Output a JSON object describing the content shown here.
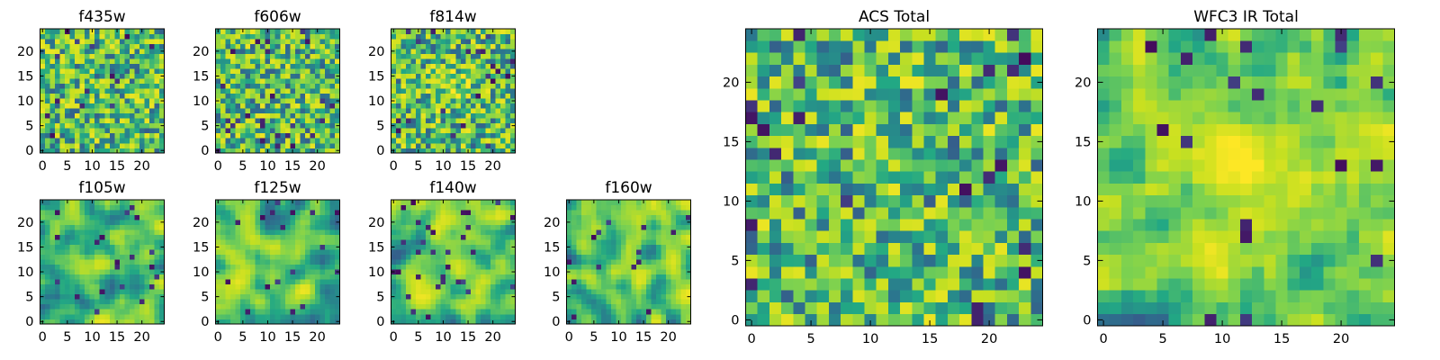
{
  "figure": {
    "colormap": "viridis",
    "colormap_stops": [
      "#440154",
      "#414487",
      "#2a788e",
      "#22a884",
      "#7ad151",
      "#c7e020",
      "#fde725"
    ],
    "background": "#ffffff"
  },
  "chart_data": [
    {
      "type": "heatmap",
      "title": "f435w",
      "grid": false,
      "size": [
        25,
        25
      ],
      "xlim": [
        -0.5,
        24.5
      ],
      "ylim": [
        -0.5,
        24.5
      ],
      "xticks": [
        0,
        5,
        10,
        15,
        20
      ],
      "yticks": [
        0,
        5,
        10,
        15,
        20
      ],
      "values": "pixel grid (25x25), mostly 0.6-0.9 normalized intensity with scattered low (dark) pixels; not individually labeled"
    },
    {
      "type": "heatmap",
      "title": "f606w",
      "grid": false,
      "size": [
        25,
        25
      ],
      "xlim": [
        -0.5,
        24.5
      ],
      "ylim": [
        -0.5,
        24.5
      ],
      "xticks": [
        0,
        5,
        10,
        15,
        20
      ],
      "yticks": [
        0,
        5,
        10,
        15,
        20
      ],
      "values": "pixel grid (25x25), mostly 0.6-0.95 normalized intensity with scattered low pixels"
    },
    {
      "type": "heatmap",
      "title": "f814w",
      "grid": false,
      "size": [
        25,
        25
      ],
      "xlim": [
        -0.5,
        24.5
      ],
      "ylim": [
        -0.5,
        24.5
      ],
      "xticks": [
        0,
        5,
        10,
        15,
        20
      ],
      "yticks": [
        0,
        5,
        10,
        15,
        20
      ],
      "values": "pixel grid (25x25), mostly 0.55-0.9 normalized intensity, slightly brighter near center"
    },
    {
      "type": "heatmap",
      "title": "f105w",
      "grid": false,
      "size": [
        25,
        25
      ],
      "xlim": [
        -0.5,
        24.5
      ],
      "ylim": [
        -0.5,
        24.5
      ],
      "xticks": [
        0,
        5,
        10,
        15,
        20
      ],
      "yticks": [
        0,
        5,
        10,
        15,
        20
      ],
      "values": "pixel grid (25x25), smoothed field with brighter center (~x 10-15, y 10-14)"
    },
    {
      "type": "heatmap",
      "title": "f125w",
      "grid": false,
      "size": [
        25,
        25
      ],
      "xlim": [
        -0.5,
        24.5
      ],
      "ylim": [
        -0.5,
        24.5
      ],
      "xticks": [
        0,
        5,
        10,
        15,
        20
      ],
      "yticks": [
        0,
        5,
        10,
        15,
        20
      ],
      "values": "pixel grid (25x25), smoothed field, bright yellow patches"
    },
    {
      "type": "heatmap",
      "title": "f140w",
      "grid": false,
      "size": [
        25,
        25
      ],
      "xlim": [
        -0.5,
        24.5
      ],
      "ylim": [
        -0.5,
        24.5
      ],
      "xticks": [
        0,
        5,
        10,
        15,
        20
      ],
      "yticks": [
        0,
        5,
        10,
        15,
        20
      ],
      "values": "pixel grid (25x25), smoothed field, bright band around y 15-20"
    },
    {
      "type": "heatmap",
      "title": "f160w",
      "grid": false,
      "size": [
        25,
        25
      ],
      "xlim": [
        -0.5,
        24.5
      ],
      "ylim": [
        -0.5,
        24.5
      ],
      "xticks": [
        0,
        5,
        10,
        15,
        20
      ],
      "yticks": [
        0,
        5,
        10,
        15,
        20
      ],
      "values": "pixel grid (25x25), smoothed field, bright patch near center"
    },
    {
      "type": "heatmap",
      "title": "ACS Total",
      "grid": false,
      "size": [
        25,
        25
      ],
      "xlim": [
        -0.5,
        24.5
      ],
      "ylim": [
        -0.5,
        24.5
      ],
      "xticks": [
        0,
        5,
        10,
        15,
        20
      ],
      "yticks": [
        0,
        5,
        10,
        15,
        20
      ],
      "values": "pixel grid (25x25), sum of f435w/f606w/f814w, mostly green with isolated dark pixels"
    },
    {
      "type": "heatmap",
      "title": "WFC3 IR Total",
      "grid": false,
      "size": [
        25,
        25
      ],
      "xlim": [
        -0.5,
        24.5
      ],
      "ylim": [
        -0.5,
        24.5
      ],
      "xticks": [
        0,
        5,
        10,
        15,
        20
      ],
      "yticks": [
        0,
        5,
        10,
        15,
        20
      ],
      "values": "pixel grid (25x25), sum of IR bands, bright yellow region near x 10-15, y 12-14, bright band near y 17-18"
    }
  ]
}
